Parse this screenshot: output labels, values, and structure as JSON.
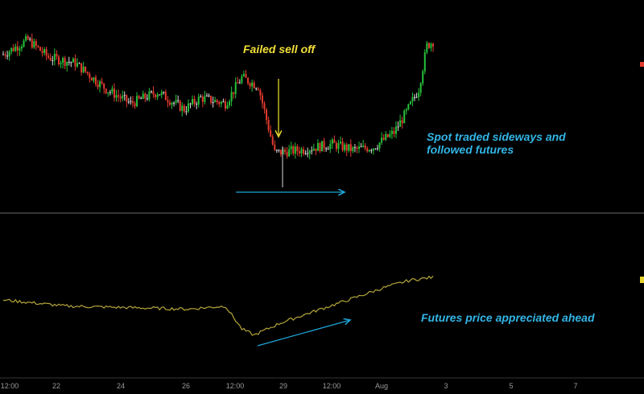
{
  "colors": {
    "background": "#000000",
    "up_candle": "#27c23a",
    "down_candle": "#e23b2e",
    "doji_candle": "#dcdcdc",
    "futures_line": "#b5a63a",
    "spot_arrow": "#1ea5d6",
    "futures_arrow": "#1ea5d6",
    "yellow_marker": "#e5d52c",
    "failed_annotation": "#f2df3a",
    "cyan_text": "#33b5e6",
    "divider": "#6b6b6b",
    "axis_text": "#9a9a9a"
  },
  "annotations": {
    "failed_selloff": "Failed sell off",
    "spot_line1": "Spot traded sideways and",
    "spot_line2": "followed futures",
    "futures_text": "Futures price appreciated ahead"
  },
  "chart_data": [
    {
      "type": "candlestick",
      "title": "",
      "xlabel": "",
      "ylabel": "",
      "x_ticks": [
        "12:00",
        "22",
        "24",
        "26",
        "12:00",
        "29",
        "12:00",
        "Aug",
        "3",
        "5",
        "7"
      ],
      "ylim": [
        0,
        100
      ],
      "grid": false,
      "trend_path": [
        [
          0,
          78
        ],
        [
          12,
          88
        ],
        [
          22,
          76
        ],
        [
          35,
          72
        ],
        [
          50,
          54
        ],
        [
          62,
          44
        ],
        [
          75,
          52
        ],
        [
          88,
          40
        ],
        [
          96,
          48
        ],
        [
          108,
          44
        ],
        [
          116,
          62
        ],
        [
          124,
          56
        ],
        [
          132,
          10
        ],
        [
          145,
          12
        ],
        [
          160,
          16
        ],
        [
          170,
          12
        ],
        [
          180,
          14
        ],
        [
          190,
          24
        ],
        [
          196,
          38
        ],
        [
          202,
          54
        ],
        [
          206,
          84
        ],
        [
          210,
          88
        ]
      ],
      "candle_count": 210,
      "annotation_arrow": {
        "from_x": 133,
        "to_x": 178
      }
    },
    {
      "type": "line",
      "series": [
        {
          "values_path": [
            [
              0,
              60
            ],
            [
              30,
              52
            ],
            [
              60,
              50
            ],
            [
              90,
              48
            ],
            [
              108,
              52
            ],
            [
              116,
              22
            ],
            [
              122,
              14
            ],
            [
              135,
              30
            ],
            [
              150,
              44
            ],
            [
              170,
              62
            ],
            [
              185,
              76
            ],
            [
              198,
              86
            ],
            [
              210,
              90
            ]
          ]
        }
      ],
      "ylim": [
        0,
        100
      ],
      "annotation_arrow": {
        "from_x": 124,
        "to_x": 170
      }
    }
  ]
}
